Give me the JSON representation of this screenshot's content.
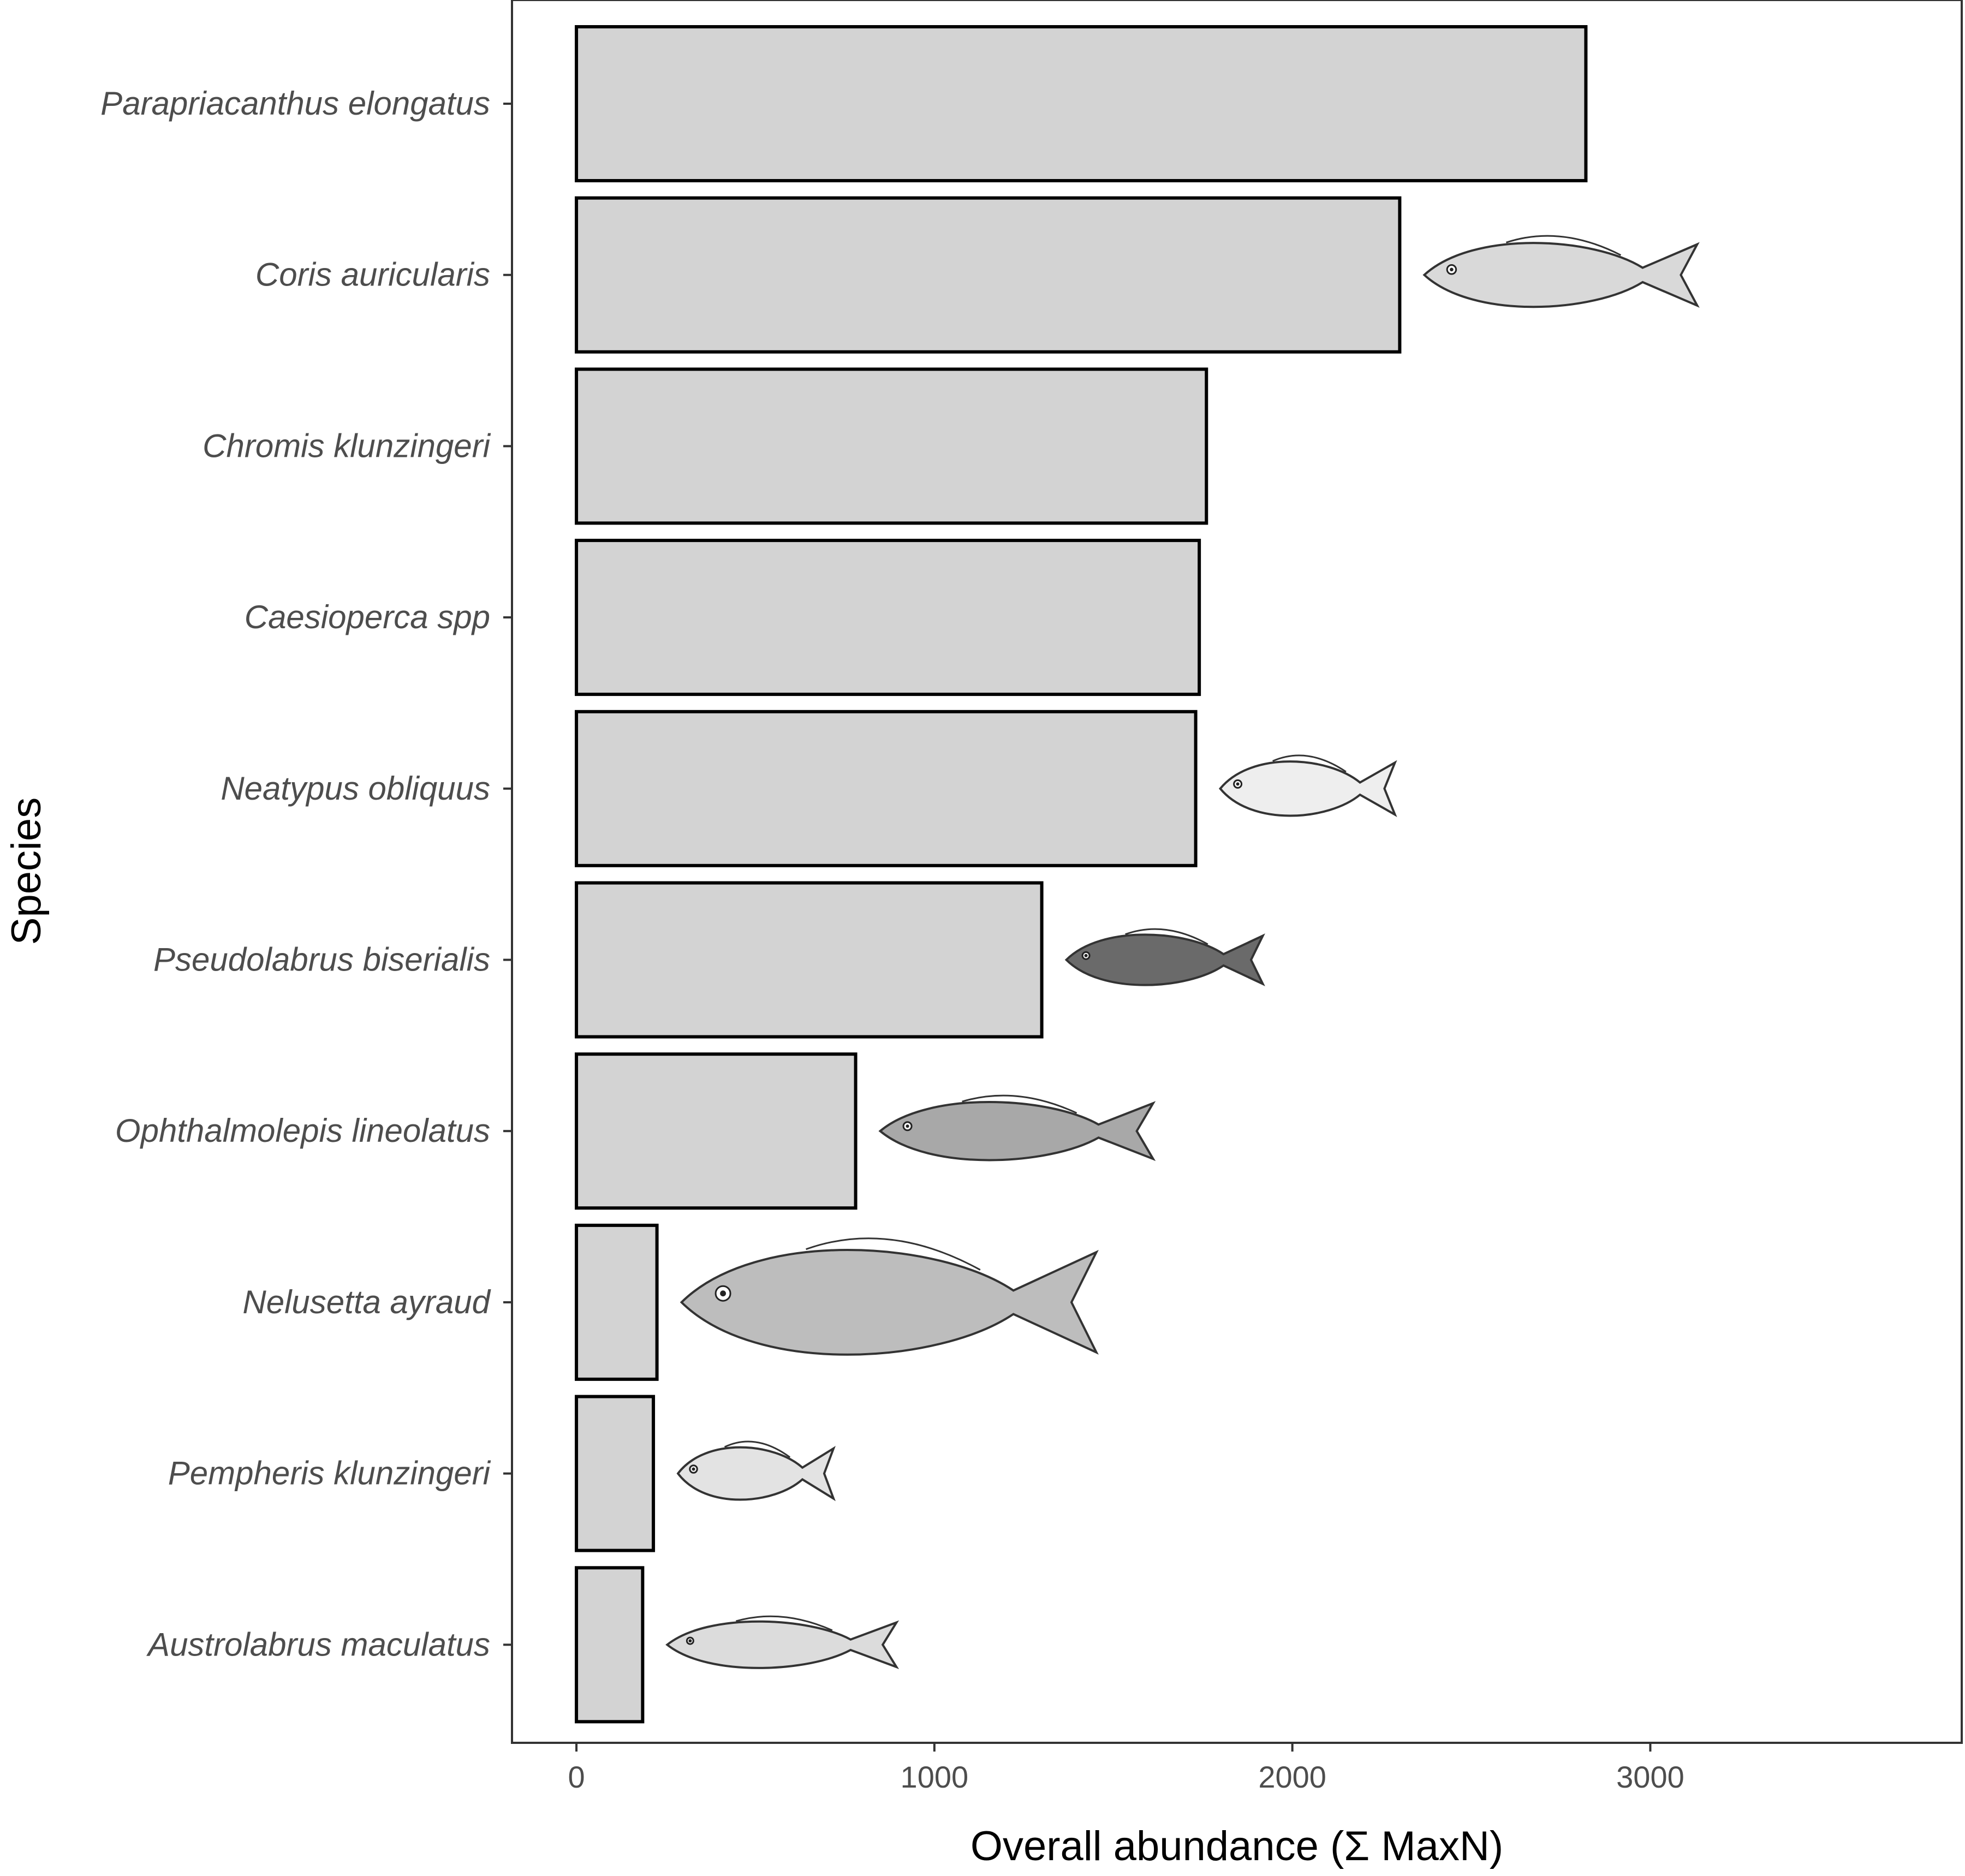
{
  "chart_data": {
    "type": "bar",
    "orientation": "horizontal",
    "categories": [
      "Parapriacanthus elongatus",
      "Coris auricularis",
      "Chromis klunzingeri",
      "Caesioperca spp",
      "Neatypus obliquus",
      "Pseudolabrus biserialis",
      "Ophthalmolepis lineolatus",
      "Nelusetta ayraud",
      "Pempheris klunzingeri",
      "Austrolabrus maculatus"
    ],
    "values": [
      2820,
      2300,
      1760,
      1740,
      1730,
      1300,
      780,
      225,
      215,
      185
    ],
    "xlabel": "Overall abundance (Σ MaxN)",
    "ylabel": "Species",
    "xlim": [
      -180,
      3870
    ],
    "xticks": [
      0,
      1000,
      2000,
      3000
    ],
    "grid": false,
    "legend": "none",
    "colors": {
      "bar_fill": "#d3d3d3",
      "bar_stroke": "#000000",
      "panel_border": "#333333"
    },
    "fish_illustrations": [
      {
        "species": "Coris auricularis",
        "icon": "wrasse-fish-icon",
        "tone": "#d9d9d9"
      },
      {
        "species": "Neatypus obliquus",
        "icon": "striped-butterfly-fish-icon",
        "tone": "#eeeeee"
      },
      {
        "species": "Pseudolabrus biserialis",
        "icon": "dark-wrasse-fish-icon",
        "tone": "#6a6a6a"
      },
      {
        "species": "Ophthalmolepis lineolatus",
        "icon": "lined-wrasse-fish-icon",
        "tone": "#a8a8a8"
      },
      {
        "species": "Nelusetta ayraud",
        "icon": "leatherjacket-fish-icon",
        "tone": "#bdbdbd"
      },
      {
        "species": "Pempheris klunzingeri",
        "icon": "sweep-fish-icon",
        "tone": "#e3e3e3"
      },
      {
        "species": "Austrolabrus maculatus",
        "icon": "spotted-wrasse-fish-icon",
        "tone": "#dcdcdc"
      }
    ]
  }
}
